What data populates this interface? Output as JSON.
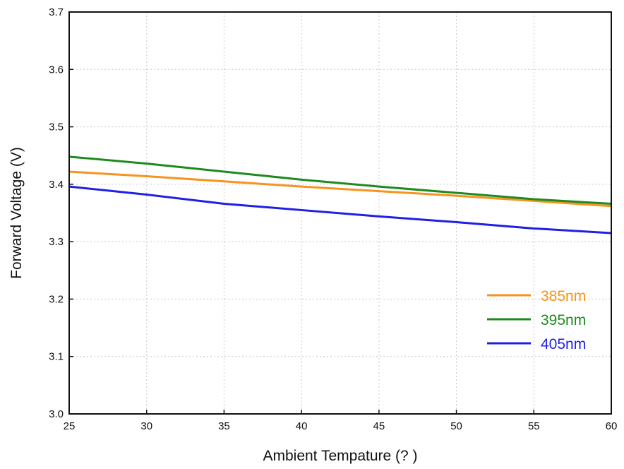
{
  "chart_data": {
    "type": "line",
    "title": "",
    "xlabel": "Ambient Tempature (?  )",
    "ylabel": "Forward Voltage (V)",
    "xlim": [
      25,
      60
    ],
    "ylim": [
      3.0,
      3.7
    ],
    "x_ticks": [
      "25",
      "30",
      "35",
      "40",
      "45",
      "50",
      "55",
      "60"
    ],
    "y_ticks": [
      "3.0",
      "3.1",
      "3.2",
      "3.3",
      "3.4",
      "3.5",
      "3.6",
      "3.7"
    ],
    "grid": true,
    "legend_position": "lower-right",
    "x": [
      25,
      30,
      35,
      40,
      45,
      50,
      55,
      60
    ],
    "series": [
      {
        "name": "385nm",
        "color": "#f7931e",
        "values": [
          3.422,
          3.414,
          3.405,
          3.396,
          3.388,
          3.38,
          3.371,
          3.362
        ]
      },
      {
        "name": "395nm",
        "color": "#1e8a1e",
        "values": [
          3.448,
          3.436,
          3.422,
          3.408,
          3.396,
          3.385,
          3.374,
          3.366
        ]
      },
      {
        "name": "405nm",
        "color": "#1f1fe8",
        "values": [
          3.396,
          3.382,
          3.366,
          3.355,
          3.344,
          3.334,
          3.323,
          3.315
        ]
      }
    ]
  }
}
